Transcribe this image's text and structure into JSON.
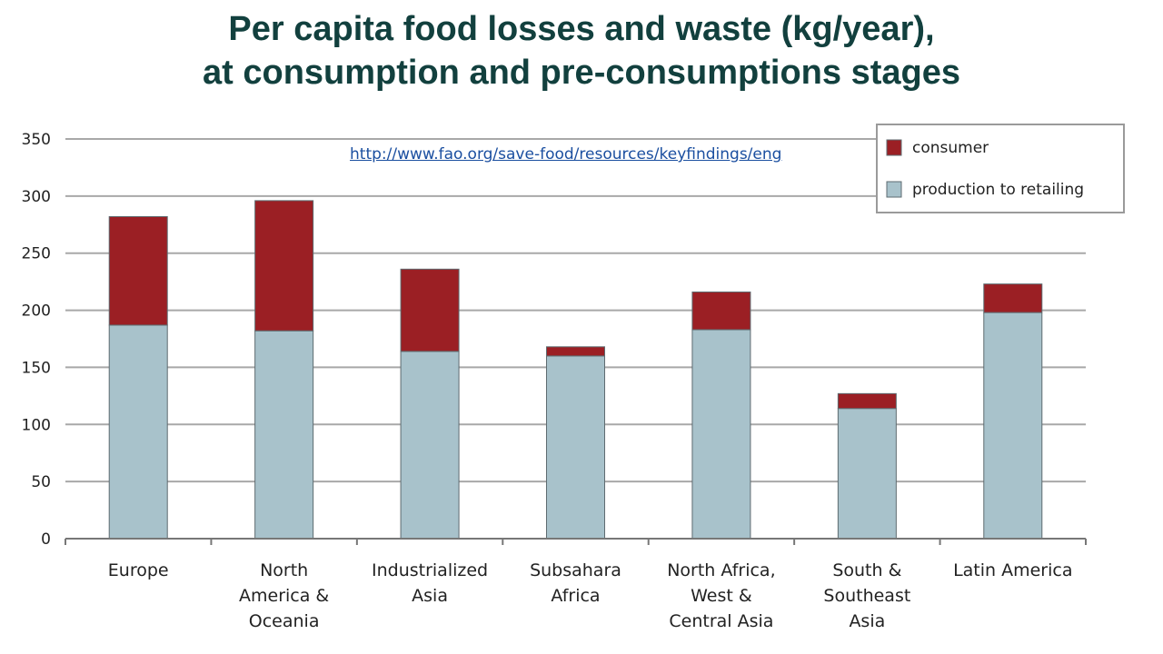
{
  "title": {
    "line1": "Per capita food losses and waste (kg/year),",
    "line2": "at consumption and pre-consumptions stages"
  },
  "source_link": "http://www.fao.org/save-food/resources/keyfindings/eng",
  "colors": {
    "consumer": "#9b1f24",
    "production": "#a8c2cb",
    "title": "#12403e",
    "link": "#1b4fa0"
  },
  "chart_data": {
    "type": "bar",
    "stacked": true,
    "categories": [
      "Europe",
      "North America & Oceania",
      "Industrialized Asia",
      "Subsahara Africa",
      "North Africa, West & Central Asia",
      "South & Southeast Asia",
      "Latin America"
    ],
    "category_lines": [
      [
        "Europe"
      ],
      [
        "North",
        "America &",
        "Oceania"
      ],
      [
        "Industrialized",
        "Asia"
      ],
      [
        "Subsahara",
        "Africa"
      ],
      [
        "North Africa,",
        "West &",
        "Central Asia"
      ],
      [
        "South &",
        "Southeast",
        "Asia"
      ],
      [
        "Latin America"
      ]
    ],
    "series": [
      {
        "name": "production to retailing",
        "values": [
          187,
          182,
          164,
          160,
          183,
          114,
          198
        ]
      },
      {
        "name": "consumer",
        "values": [
          95,
          114,
          72,
          8,
          33,
          13,
          25
        ]
      }
    ],
    "ylim": [
      0,
      350
    ],
    "yticks": [
      0,
      50,
      100,
      150,
      200,
      250,
      300,
      350
    ],
    "grid": true,
    "legend_position": "top-right",
    "legend_order": [
      "consumer",
      "production to retailing"
    ]
  }
}
